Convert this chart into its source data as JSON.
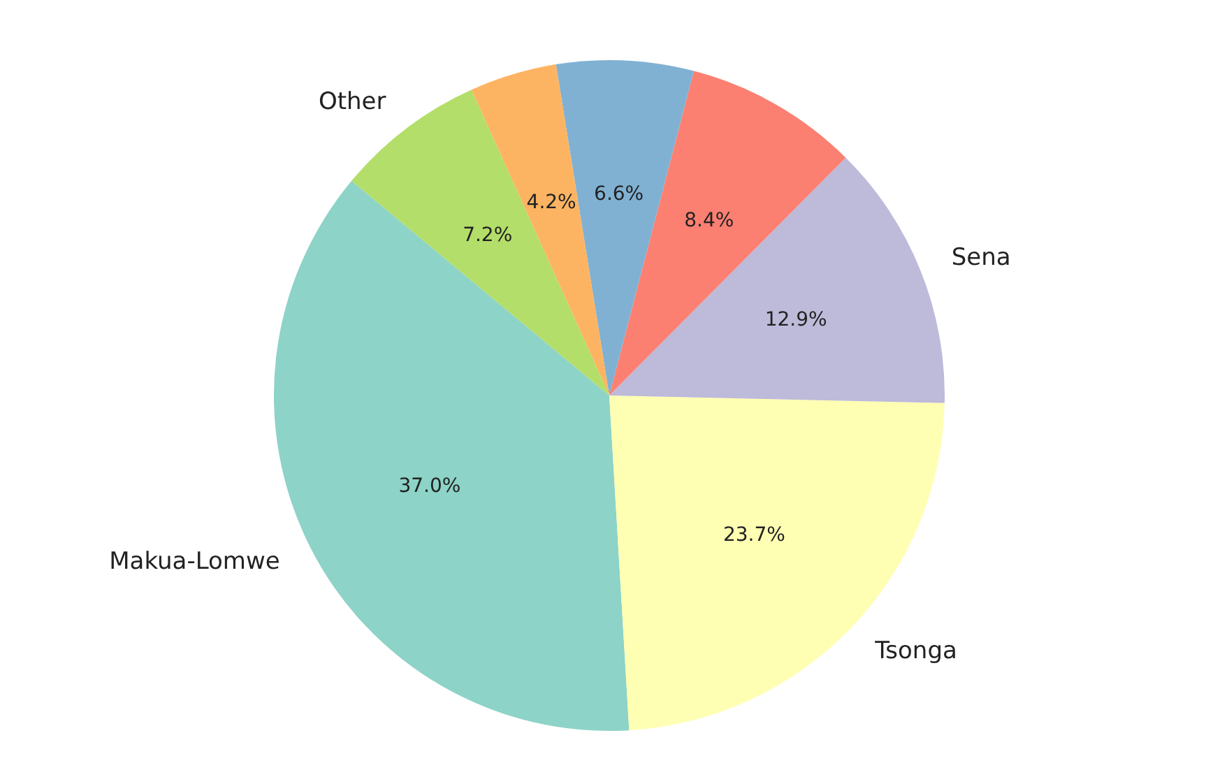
{
  "chart_data": {
    "type": "pie",
    "categories": [
      "Makua-Lomwe",
      "Tsonga",
      "Sena",
      null,
      null,
      null,
      "Other"
    ],
    "values": [
      37.0,
      23.7,
      12.9,
      8.4,
      6.6,
      4.2,
      7.2
    ],
    "value_labels": [
      "37.0%",
      "23.7%",
      "12.9%",
      "8.4%",
      "6.6%",
      "4.2%",
      "7.2%"
    ],
    "colors": [
      "#8dd3c7",
      "#ffffb3",
      "#bebada",
      "#fb8072",
      "#80b1d3",
      "#fdb462",
      "#b3de69"
    ]
  }
}
